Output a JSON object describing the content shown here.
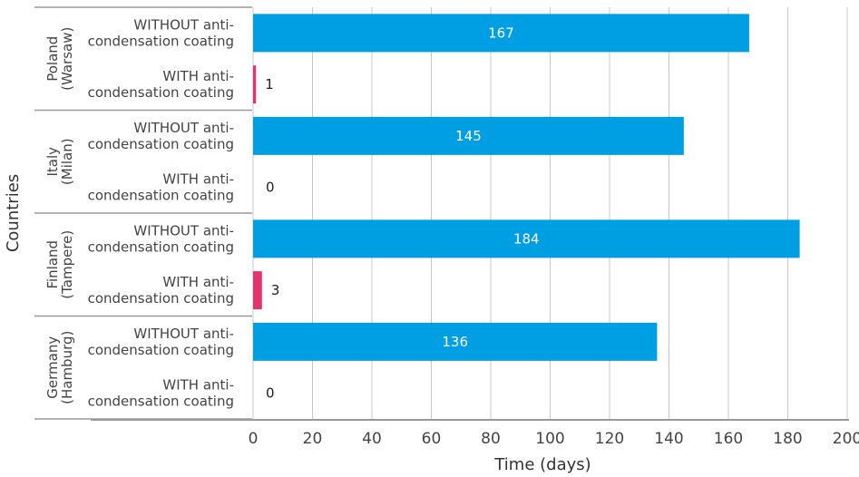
{
  "chart_data": {
    "type": "bar",
    "orientation": "horizontal",
    "title": "",
    "xlabel": "Time (days)",
    "ylabel": "Countries",
    "xlim": [
      0,
      200
    ],
    "xticks": [
      0,
      20,
      40,
      60,
      80,
      100,
      120,
      140,
      160,
      180,
      200
    ],
    "grid": true,
    "legend": "none",
    "colors": {
      "without": "#009fe3",
      "with": "#e5336c"
    },
    "groups": [
      {
        "label": "Poland\n(Warsaw)",
        "bars": [
          {
            "category": "WITHOUT anti-\ncondensation coating",
            "value": 167,
            "label": "167",
            "series": "without"
          },
          {
            "category": "WITH anti-\ncondensation coating",
            "value": 1,
            "label": "1",
            "series": "with"
          }
        ]
      },
      {
        "label": "Italy\n(Milan)",
        "bars": [
          {
            "category": "WITHOUT anti-\ncondensation coating",
            "value": 145,
            "label": "145",
            "series": "without"
          },
          {
            "category": "WITH anti-\ncondensation coating",
            "value": 0,
            "label": "0",
            "series": "with"
          }
        ]
      },
      {
        "label": "Finland\n(Tampere)",
        "bars": [
          {
            "category": "WITHOUT anti-\ncondensation coating",
            "value": 184,
            "label": "184",
            "series": "without"
          },
          {
            "category": "WITH anti-\ncondensation coating",
            "value": 3,
            "label": "3",
            "series": "with"
          }
        ]
      },
      {
        "label": "Germany\n(Hamburg)",
        "bars": [
          {
            "category": "WITHOUT anti-\ncondensation coating",
            "value": 136,
            "label": "136",
            "series": "without"
          },
          {
            "category": "WITH anti-\ncondensation coating",
            "value": 0,
            "label": "0",
            "series": "with"
          }
        ]
      }
    ]
  }
}
